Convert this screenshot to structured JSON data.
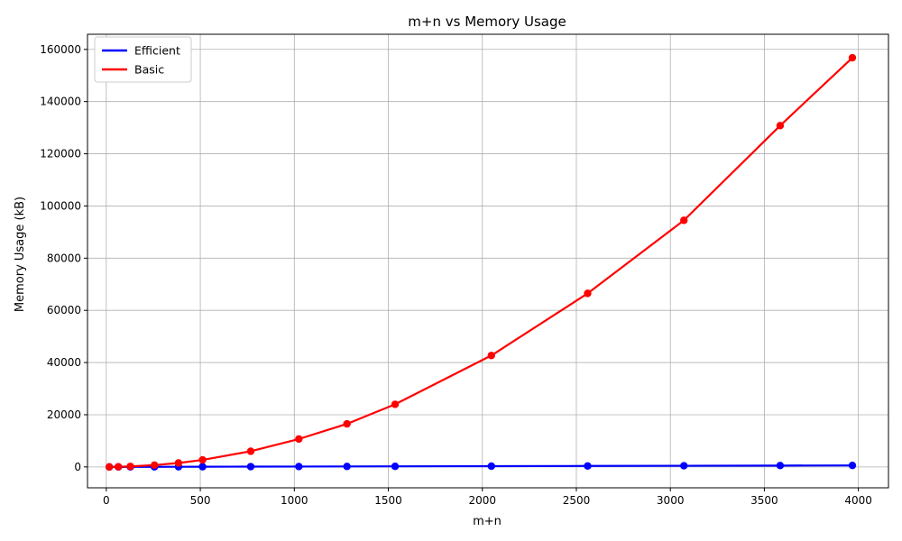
{
  "chart_data": {
    "type": "line",
    "title": "m+n vs Memory Usage",
    "xlabel": "m+n",
    "ylabel": "Memory Usage (kB)",
    "xlim": [
      -100,
      4160
    ],
    "ylim": [
      -8000,
      165800
    ],
    "xticks": [
      0,
      500,
      1000,
      1500,
      2000,
      2500,
      3000,
      3500,
      4000
    ],
    "yticks": [
      0,
      20000,
      40000,
      60000,
      80000,
      100000,
      120000,
      140000,
      160000
    ],
    "grid": true,
    "legend_position": "top-left",
    "series": [
      {
        "name": "Efficient",
        "color": "#0000ff",
        "x": [
          16,
          64,
          128,
          256,
          384,
          512,
          768,
          1024,
          1280,
          1536,
          2048,
          2560,
          3072,
          3584,
          3968
        ],
        "y": [
          0,
          0,
          20,
          40,
          60,
          80,
          110,
          140,
          180,
          220,
          300,
          370,
          440,
          520,
          580
        ]
      },
      {
        "name": "Basic",
        "color": "#ff0000",
        "x": [
          16,
          64,
          128,
          256,
          384,
          512,
          768,
          1024,
          1280,
          1536,
          2048,
          2560,
          3072,
          3584,
          3968
        ],
        "y": [
          0,
          50,
          200,
          700,
          1500,
          2700,
          6000,
          10700,
          16500,
          24000,
          42700,
          66500,
          94500,
          130800,
          156800
        ]
      }
    ]
  }
}
